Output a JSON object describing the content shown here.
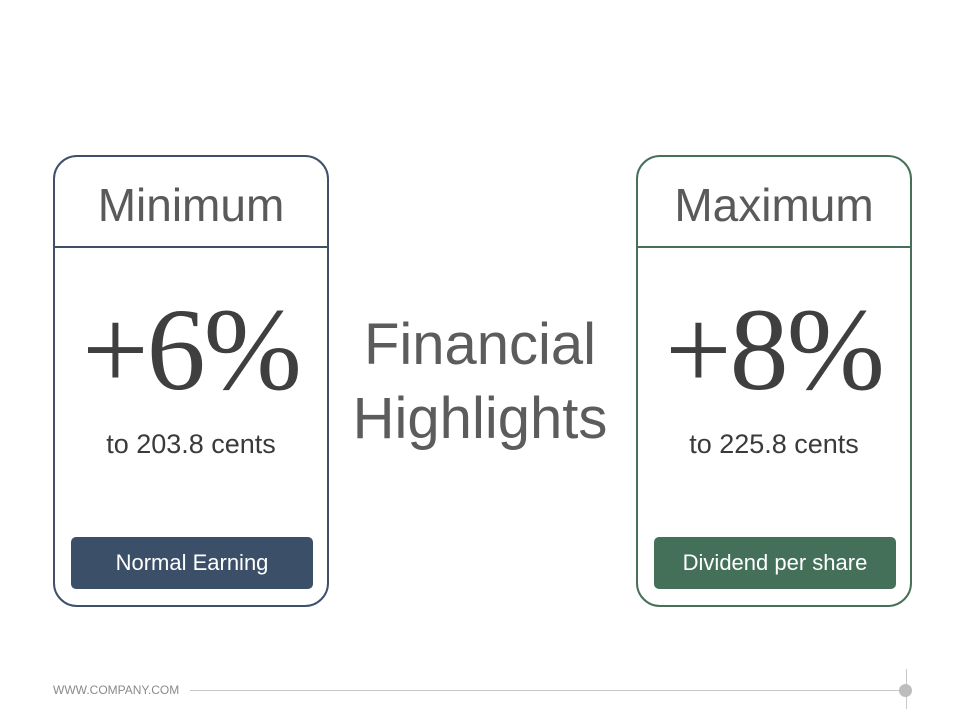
{
  "slide": {
    "center_title_line1": "Financial",
    "center_title_line2": "Highlights"
  },
  "cards": {
    "minimum": {
      "title": "Minimum",
      "value": "+6%",
      "subtitle": "to 203.8 cents",
      "button_label": "Normal Earning",
      "color": "#3e506a"
    },
    "maximum": {
      "title": "Maximum",
      "value": "+8%",
      "subtitle": "to 225.8 cents",
      "button_label": "Dividend per share",
      "color": "#46705a"
    }
  },
  "footer": {
    "website": "WWW.COMPANY.COM"
  }
}
